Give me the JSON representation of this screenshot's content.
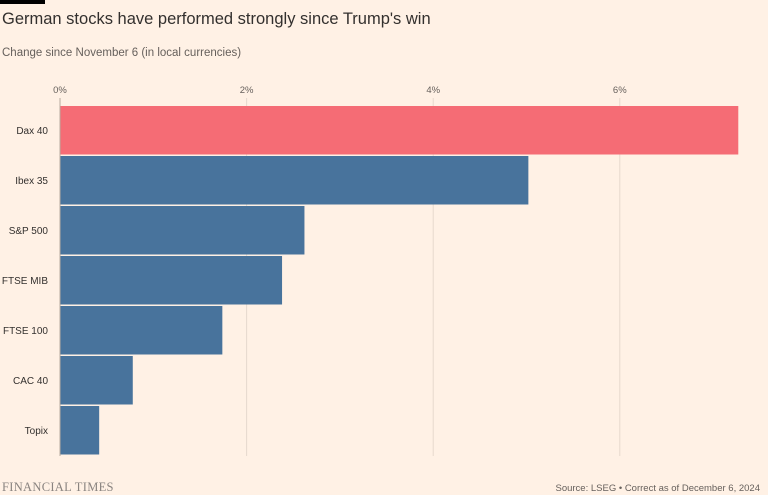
{
  "title": "German stocks have performed strongly since Trump's win",
  "subtitle": "Change since November 6 (in local currencies)",
  "branding": "FINANCIAL TIMES",
  "source": "Source: LSEG • Correct as of December 6, 2024",
  "colors": {
    "background": "#fff1e5",
    "highlight": "#f56c75",
    "bar": "#48739c",
    "text": "#33302e",
    "muted": "#66605c"
  },
  "chart_data": {
    "type": "bar",
    "orientation": "horizontal",
    "title": "German stocks have performed strongly since Trump's win",
    "subtitle": "Change since November 6 (in local currencies)",
    "xlabel": "",
    "ylabel": "",
    "categories": [
      "Dax 40",
      "Ibex 35",
      "S&P 500",
      "FTSE MIB",
      "FTSE 100",
      "CAC 40",
      "Topix"
    ],
    "values": [
      7.27,
      5.02,
      2.62,
      2.38,
      1.74,
      0.78,
      0.42
    ],
    "highlight": [
      "Dax 40"
    ],
    "xlim": [
      0,
      7.5
    ],
    "ticks": [
      0,
      2,
      4,
      6
    ],
    "tick_labels": [
      "0%",
      "2%",
      "4%",
      "6%"
    ],
    "grid": true,
    "legend": "none"
  }
}
